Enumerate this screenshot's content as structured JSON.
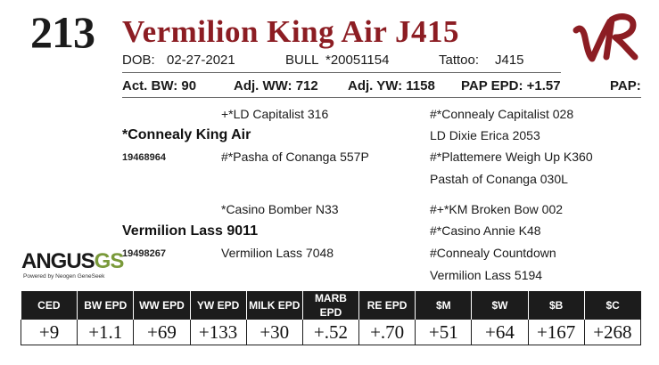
{
  "lot_number": "213",
  "animal_name": "Vermilion King Air J415",
  "brand_logo_letters": "VR",
  "brand_color": "#8c1d23",
  "id": {
    "dob_label": "DOB:",
    "dob": "02-27-2021",
    "sex": "BULL",
    "registration": "*20051154",
    "tattoo_label": "Tattoo:",
    "tattoo": "J415"
  },
  "performance": {
    "bw": "Act. BW: 90",
    "ww": "Adj. WW: 712",
    "yw": "Adj. YW: 1158",
    "pap_epd": "PAP EPD: +1.57",
    "pap": "PAP:"
  },
  "pedigree": {
    "sire": {
      "name": "*Connealy King Air",
      "reg": "19468964"
    },
    "sire_sire": "+*LD Capitalist 316",
    "sire_dam": "#*Pasha of Conanga 557P",
    "sss": "#*Connealy Capitalist 028",
    "ssd": "LD Dixie Erica 2053",
    "sds": "#*Plattemere Weigh Up K360",
    "sdd": "Pastah of Conanga 030L",
    "dam": {
      "name": "Vermilion Lass 9011",
      "reg": "19498267"
    },
    "dam_sire": "*Casino Bomber N33",
    "dam_dam": "Vermilion Lass 7048",
    "dss": "#+*KM Broken Bow 002",
    "dsd": "#*Casino Annie K48",
    "dds": "#Connealy Countdown",
    "ddd": "Vermilion Lass 5194"
  },
  "angus_logo": {
    "word": "ANGUS",
    "gs": "GS",
    "tagline": "Powered by Neogen GeneSeek"
  },
  "epd_table": {
    "headers": [
      "CED",
      "BW EPD",
      "WW EPD",
      "YW EPD",
      "MILK EPD",
      "MARB EPD",
      "RE EPD",
      "$M",
      "$W",
      "$B",
      "$C"
    ],
    "values": [
      "+9",
      "+1.1",
      "+69",
      "+133",
      "+30",
      "+.52",
      "+.70",
      "+51",
      "+64",
      "+167",
      "+268"
    ]
  }
}
